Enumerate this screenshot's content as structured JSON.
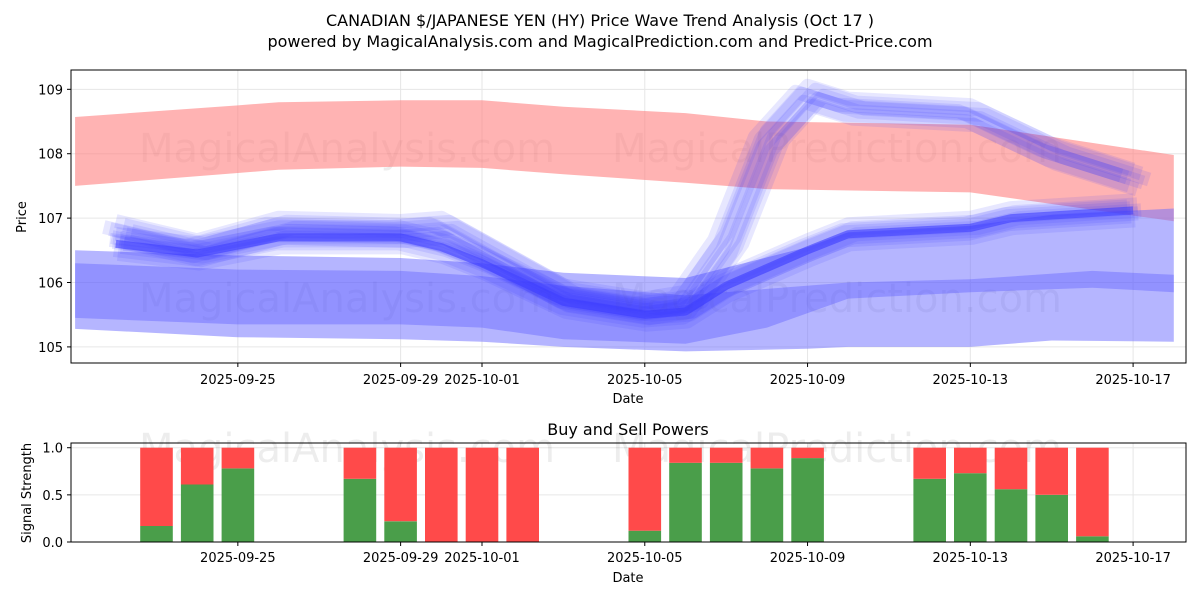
{
  "title_line1": "CANADIAN $/JAPANESE YEN (HY) Price Wave Trend Analysis (Oct 17 )",
  "title_line2": "powered by MagicalAnalysis.com and MagicalPrediction.com and Predict-Price.com",
  "watermarks": [
    "MagicalAnalysis.com",
    "MagicalPrediction.com"
  ],
  "colors": {
    "red_band": "#ff8080",
    "blue_band": "#6b6bff",
    "buy": "#4a9e4a",
    "sell": "#ff4a4a"
  },
  "chart_data": [
    {
      "type": "area",
      "title": "",
      "xlabel": "Date",
      "ylabel": "Price",
      "ylim": [
        104.75,
        109.3
      ],
      "xlim": [
        "2025-09-20",
        "2025-10-18"
      ],
      "x_ticks": [
        "2025-09-25",
        "2025-09-29",
        "2025-10-01",
        "2025-10-05",
        "2025-10-09",
        "2025-10-13",
        "2025-10-17"
      ],
      "y_ticks": [
        105,
        106,
        107,
        108,
        109
      ],
      "grid": true,
      "series": [
        {
          "name": "red band",
          "x": [
            "2025-09-21",
            "2025-09-25",
            "2025-09-26",
            "2025-09-29",
            "2025-10-01",
            "2025-10-03",
            "2025-10-06",
            "2025-10-08",
            "2025-10-13",
            "2025-10-18"
          ],
          "lower": [
            107.5,
            107.7,
            107.75,
            107.8,
            107.78,
            107.68,
            107.55,
            107.45,
            107.4,
            106.95
          ],
          "upper": [
            108.57,
            108.75,
            108.8,
            108.83,
            108.83,
            108.73,
            108.63,
            108.5,
            108.45,
            107.98
          ]
        },
        {
          "name": "blue band wide",
          "x": [
            "2025-09-21",
            "2025-09-25",
            "2025-09-29",
            "2025-10-01",
            "2025-10-03",
            "2025-10-06",
            "2025-10-09",
            "2025-10-10",
            "2025-10-13",
            "2025-10-15",
            "2025-10-18"
          ],
          "lower": [
            105.28,
            105.15,
            105.12,
            105.08,
            105.0,
            104.93,
            104.97,
            105.0,
            105.0,
            105.1,
            105.08
          ],
          "upper": [
            106.5,
            106.42,
            106.38,
            106.3,
            106.15,
            106.07,
            106.55,
            106.78,
            106.88,
            107.05,
            107.15
          ]
        },
        {
          "name": "blue band mid",
          "x": [
            "2025-09-21",
            "2025-09-25",
            "2025-09-29",
            "2025-10-01",
            "2025-10-03",
            "2025-10-06",
            "2025-10-08",
            "2025-10-10",
            "2025-10-13",
            "2025-10-16",
            "2025-10-18"
          ],
          "lower": [
            105.45,
            105.35,
            105.35,
            105.3,
            105.12,
            105.05,
            105.3,
            105.75,
            105.85,
            105.92,
            105.85
          ],
          "upper": [
            106.3,
            106.2,
            106.18,
            106.1,
            105.95,
            105.8,
            105.9,
            106.0,
            106.05,
            106.18,
            106.12
          ]
        },
        {
          "name": "blue wave low",
          "x": [
            "2025-09-22",
            "2025-09-24",
            "2025-09-26",
            "2025-09-29",
            "2025-09-30",
            "2025-10-01",
            "2025-10-03",
            "2025-10-05",
            "2025-10-06",
            "2025-10-07",
            "2025-10-09",
            "2025-10-10",
            "2025-10-13",
            "2025-10-14",
            "2025-10-17"
          ],
          "values": [
            106.6,
            106.45,
            106.7,
            106.7,
            106.55,
            106.3,
            105.7,
            105.5,
            105.55,
            105.95,
            106.5,
            106.75,
            106.85,
            107.0,
            107.12
          ]
        },
        {
          "name": "blue wave high",
          "x": [
            "2025-09-22",
            "2025-09-24",
            "2025-09-26",
            "2025-09-29",
            "2025-09-30",
            "2025-10-01",
            "2025-10-03",
            "2025-10-05",
            "2025-10-06",
            "2025-10-07",
            "2025-10-08",
            "2025-10-09",
            "2025-10-10",
            "2025-10-13",
            "2025-10-14",
            "2025-10-15",
            "2025-10-16",
            "2025-10-17"
          ],
          "values": [
            106.8,
            106.5,
            106.85,
            106.8,
            106.85,
            106.5,
            105.8,
            105.6,
            105.7,
            106.6,
            108.2,
            108.9,
            108.7,
            108.6,
            108.3,
            108.0,
            107.8,
            107.6
          ]
        }
      ]
    },
    {
      "type": "bar",
      "title": "Buy and Sell Powers",
      "xlabel": "Date",
      "ylabel": "Signal Strength",
      "ylim": [
        0,
        1.05
      ],
      "y_ticks": [
        0.0,
        0.5,
        1.0
      ],
      "y_tick_labels": [
        "0.0",
        "0.5",
        "1.0"
      ],
      "x_ticks": [
        "2025-09-25",
        "2025-09-29",
        "2025-10-01",
        "2025-10-05",
        "2025-10-09",
        "2025-10-13",
        "2025-10-17"
      ],
      "categories": [
        "2025-09-23",
        "2025-09-24",
        "2025-09-25",
        "2025-09-28",
        "2025-09-29",
        "2025-09-30",
        "2025-10-01",
        "2025-10-02",
        "2025-10-05",
        "2025-10-06",
        "2025-10-07",
        "2025-10-08",
        "2025-10-09",
        "2025-10-12",
        "2025-10-13",
        "2025-10-14",
        "2025-10-15",
        "2025-10-16"
      ],
      "series": [
        {
          "name": "Buy",
          "values": [
            0.17,
            0.61,
            0.78,
            0.67,
            0.22,
            0.0,
            0.0,
            0.0,
            0.12,
            0.84,
            0.84,
            0.78,
            0.89,
            0.67,
            0.73,
            0.56,
            0.5,
            0.06
          ]
        },
        {
          "name": "Sell",
          "values": [
            0.83,
            0.39,
            0.22,
            0.33,
            0.78,
            1.0,
            1.0,
            1.0,
            0.88,
            0.16,
            0.16,
            0.22,
            0.11,
            0.33,
            0.27,
            0.44,
            0.5,
            0.94
          ]
        }
      ]
    }
  ]
}
